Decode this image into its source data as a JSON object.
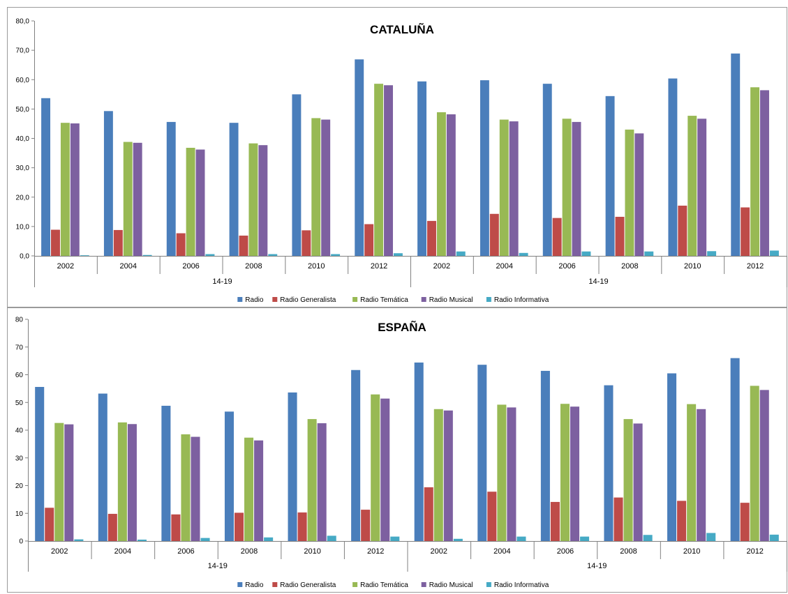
{
  "chart_data": [
    {
      "type": "bar",
      "title": "CATALUÑA",
      "ylim": [
        0,
        80
      ],
      "yticks": [
        "0,0",
        "10,0",
        "20,0",
        "30,0",
        "40,0",
        "50,0",
        "60,0",
        "70,0",
        "80,0"
      ],
      "categories": [
        "2002",
        "2004",
        "2006",
        "2008",
        "2010",
        "2012",
        "2002",
        "2004",
        "2006",
        "2008",
        "2010",
        "2012"
      ],
      "groups": [
        "14-19",
        "14-19"
      ],
      "legend": "bottom",
      "series": [
        {
          "name": "Radio",
          "color": "#4a7ebb",
          "values": [
            53.7,
            49.3,
            45.6,
            45.3,
            55.0,
            66.9,
            59.4,
            59.8,
            58.6,
            54.4,
            60.4,
            68.9
          ]
        },
        {
          "name": "Radio Generalista",
          "color": "#be4b48",
          "values": [
            8.9,
            8.8,
            7.7,
            6.9,
            8.7,
            10.8,
            11.9,
            14.3,
            12.9,
            13.3,
            17.1,
            16.5
          ]
        },
        {
          "name": "Radio Temática",
          "color": "#98b954",
          "values": [
            45.3,
            38.8,
            36.8,
            38.3,
            46.9,
            58.6,
            48.9,
            46.4,
            46.7,
            43.0,
            47.7,
            57.4
          ]
        },
        {
          "name": "Radio Musical",
          "color": "#7d60a0",
          "values": [
            45.1,
            38.5,
            36.2,
            37.7,
            46.4,
            58.1,
            48.2,
            45.8,
            45.6,
            41.7,
            46.7,
            56.4
          ]
        },
        {
          "name": "Radio Informativa",
          "color": "#46aac5",
          "values": [
            0.2,
            0.3,
            0.6,
            0.6,
            0.6,
            0.9,
            1.5,
            1.0,
            1.5,
            1.5,
            1.6,
            1.8
          ]
        }
      ]
    },
    {
      "type": "bar",
      "title": "ESPAÑA",
      "ylim": [
        0,
        80
      ],
      "yticks": [
        "0",
        "10",
        "20",
        "30",
        "40",
        "50",
        "60",
        "70",
        "80"
      ],
      "categories": [
        "2002",
        "2004",
        "2006",
        "2008",
        "2010",
        "2012",
        "2002",
        "2004",
        "2006",
        "2008",
        "2010",
        "2012"
      ],
      "groups": [
        "14-19",
        "14-19"
      ],
      "legend": "bottom",
      "series": [
        {
          "name": "Radio",
          "color": "#4a7ebb",
          "values": [
            55.6,
            53.2,
            48.8,
            46.7,
            53.6,
            61.7,
            64.4,
            63.6,
            61.4,
            56.2,
            60.5,
            66.0
          ]
        },
        {
          "name": "Radio Generalista",
          "color": "#be4b48",
          "values": [
            12.0,
            9.8,
            9.6,
            10.2,
            10.3,
            11.3,
            19.4,
            17.8,
            14.1,
            15.7,
            14.5,
            13.8
          ]
        },
        {
          "name": "Radio Temática",
          "color": "#98b954",
          "values": [
            42.6,
            42.8,
            38.5,
            37.3,
            44.0,
            52.9,
            47.6,
            49.2,
            49.5,
            44.0,
            49.4,
            56.0
          ]
        },
        {
          "name": "Radio Musical",
          "color": "#7d60a0",
          "values": [
            42.1,
            42.2,
            37.6,
            36.3,
            42.5,
            51.4,
            47.1,
            48.2,
            48.5,
            42.4,
            47.6,
            54.5
          ]
        },
        {
          "name": "Radio Informativa",
          "color": "#46aac5",
          "values": [
            0.6,
            0.5,
            1.1,
            1.3,
            1.9,
            1.6,
            0.8,
            1.6,
            1.6,
            2.2,
            2.9,
            2.3
          ]
        }
      ]
    }
  ]
}
